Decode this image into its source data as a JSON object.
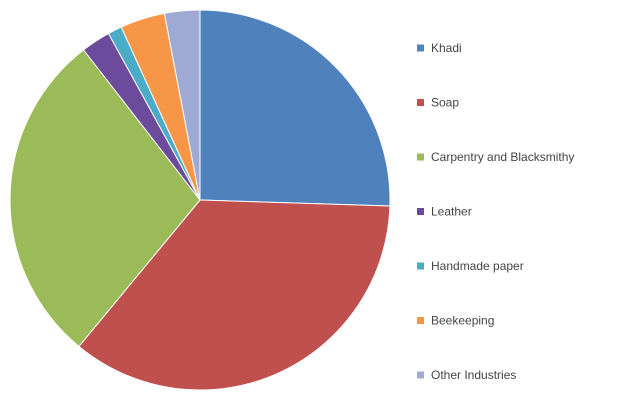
{
  "chart_data": {
    "type": "pie",
    "title": "",
    "legend_position": "right",
    "start_angle_deg": 0,
    "direction": "clockwise",
    "slices": [
      {
        "label": "Khadi",
        "value": 25.5,
        "color": "#4f81bd"
      },
      {
        "label": "Soap",
        "value": 35.5,
        "color": "#c0504d"
      },
      {
        "label": "Carpentry and Blacksmithy",
        "value": 28.5,
        "color": "#9bbb59"
      },
      {
        "label": "Leather",
        "value": 2.5,
        "color": "#6d4b9c"
      },
      {
        "label": "Handmade paper",
        "value": 1.2,
        "color": "#4bacc6"
      },
      {
        "label": "Beekeeping",
        "value": 3.8,
        "color": "#f79646"
      },
      {
        "label": "Other Industries",
        "value": 3.0,
        "color": "#9ea9d4"
      }
    ]
  }
}
